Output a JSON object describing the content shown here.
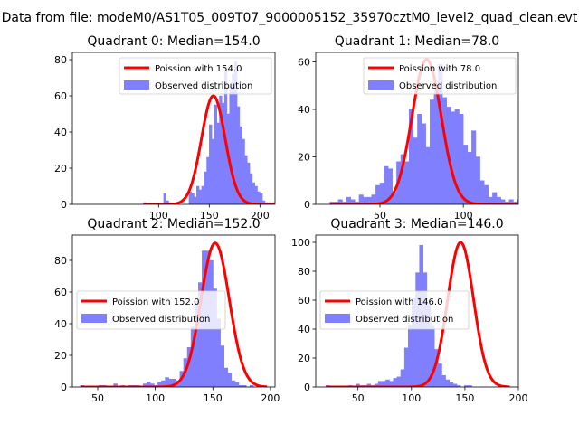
{
  "figure_title": "Data from file: modeM0/AS1T05_009T07_9000005152_35970cztM0_level2_quad_clean.evt",
  "colors": {
    "hist": "#8080ff",
    "hist_edge": "#8080ff",
    "fit": "#ff0000",
    "axes": "#000000",
    "legend_edge": "#cccccc"
  },
  "chart_data": [
    {
      "type": "bar",
      "title": "Quadrant 0: Median=154.0",
      "xlabel": "",
      "ylabel": "",
      "grid": false,
      "legend_position": "upper right",
      "xlim": [
        14.9,
        214.9
      ],
      "ylim": [
        0,
        84
      ],
      "xticks": [
        100,
        150,
        200
      ],
      "yticks": [
        0,
        20,
        40,
        60,
        80
      ],
      "bin_start": 85,
      "bin_width": 2.5,
      "counts": [
        1,
        0,
        0,
        0,
        0,
        0,
        0,
        0,
        6,
        2,
        1,
        0,
        0,
        1,
        0,
        0,
        0,
        0,
        7,
        6,
        4,
        10,
        8,
        10,
        18,
        26,
        44,
        36,
        55,
        45,
        60,
        56,
        74,
        50,
        65,
        72,
        79,
        54,
        43,
        36,
        27,
        23,
        17,
        12,
        10,
        7,
        6,
        2,
        1,
        1,
        0,
        1,
        0,
        0,
        0,
        0,
        0,
        0
      ],
      "series": [
        {
          "name": "Poission with 154.0",
          "kind": "line",
          "mean": 154.0,
          "amplitude": 60,
          "sigma": 11.7,
          "x_min": 85,
          "x_max": 214
        },
        {
          "name": "Observed distribution",
          "kind": "histogram"
        }
      ]
    },
    {
      "type": "bar",
      "title": "Quadrant 1: Median=78.0",
      "xlabel": "",
      "ylabel": "",
      "grid": false,
      "legend_position": "upper right",
      "xlim": [
        11.5,
        133
      ],
      "ylim": [
        0,
        64
      ],
      "xticks": [
        50,
        100
      ],
      "yticks": [
        0,
        20,
        40,
        60
      ],
      "bin_start": 20,
      "bin_width": 2.5,
      "counts": [
        1,
        1,
        2,
        1,
        3,
        2,
        1,
        4,
        3,
        3,
        4,
        8,
        9,
        16,
        15,
        5,
        18,
        21,
        18,
        40,
        28,
        38,
        34,
        24,
        44,
        48,
        59,
        45,
        41,
        39,
        40,
        38,
        25,
        22,
        31,
        20,
        10,
        8,
        3,
        5,
        3,
        2,
        1,
        2,
        1,
        2
      ],
      "series": [
        {
          "name": "Poission with 78.0",
          "kind": "line",
          "mean": 78.0,
          "amplitude": 61,
          "sigma": 8.8,
          "x_min": 20,
          "x_max": 133
        },
        {
          "name": "Observed distribution",
          "kind": "histogram"
        }
      ]
    },
    {
      "type": "bar",
      "title": "Quadrant 2: Median=152.0",
      "xlabel": "",
      "ylabel": "",
      "grid": false,
      "legend_position": "center left",
      "xlim": [
        28,
        204
      ],
      "ylim": [
        0,
        96
      ],
      "xticks": [
        50,
        100,
        150,
        200
      ],
      "yticks": [
        0,
        20,
        40,
        60,
        80
      ],
      "bin_start": 35,
      "bin_width": 3.2,
      "counts": [
        1,
        0,
        0,
        0,
        0,
        1,
        1,
        0,
        0,
        2,
        0,
        1,
        0,
        1,
        1,
        1,
        0,
        2,
        3,
        2,
        1,
        3,
        4,
        6,
        5,
        5,
        4,
        10,
        18,
        25,
        38,
        54,
        66,
        86,
        86,
        80,
        62,
        43,
        26,
        12,
        9,
        4,
        3,
        1,
        1,
        0,
        1,
        0,
        0,
        0,
        0,
        0,
        0
      ],
      "series": [
        {
          "name": "Poission with 152.0",
          "kind": "line",
          "mean": 152.0,
          "amplitude": 91,
          "sigma": 12.3,
          "x_min": 35,
          "x_max": 197
        },
        {
          "name": "Observed distribution",
          "kind": "histogram"
        }
      ]
    },
    {
      "type": "bar",
      "title": "Quadrant 3: Median=146.0",
      "xlabel": "",
      "ylabel": "",
      "grid": false,
      "legend_position": "center left",
      "xlim": [
        10.5,
        200
      ],
      "ylim": [
        0,
        105
      ],
      "xticks": [
        50,
        100,
        150,
        200
      ],
      "yticks": [
        0,
        20,
        40,
        60,
        80,
        100
      ],
      "bin_start": 20,
      "bin_width": 3.5,
      "counts": [
        1,
        0,
        0,
        0,
        0,
        0,
        1,
        0,
        2,
        1,
        1,
        2,
        1,
        2,
        4,
        4,
        5,
        4,
        6,
        7,
        12,
        27,
        43,
        61,
        79,
        98,
        79,
        57,
        42,
        26,
        16,
        8,
        5,
        3,
        2,
        1,
        0,
        1,
        1,
        0,
        0,
        0
      ],
      "series": [
        {
          "name": "Poission with 146.0",
          "kind": "line",
          "mean": 146.0,
          "amplitude": 100,
          "sigma": 12.1,
          "x_min": 20,
          "x_max": 192
        },
        {
          "name": "Observed distribution",
          "kind": "histogram"
        }
      ]
    }
  ]
}
